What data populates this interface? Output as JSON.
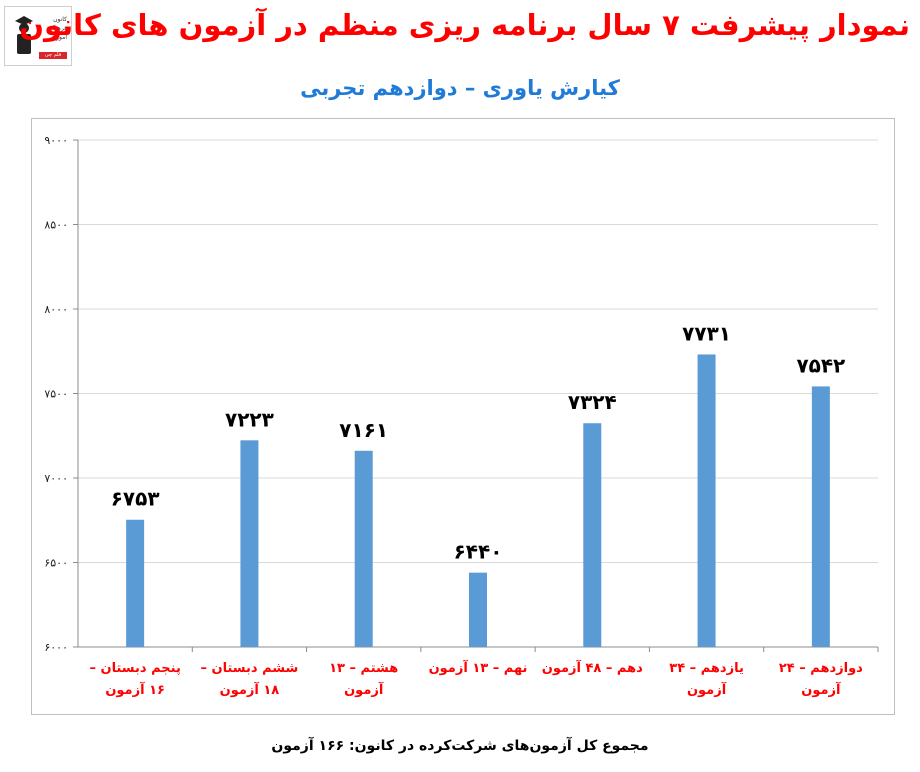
{
  "header": {
    "title": "نمودار پیشرفت ۷ سال برنامه ریزی منظم در آزمون های کانون",
    "subtitle": "کیارش یاوری – دوازدهم تجربی"
  },
  "logo": {
    "text": "کانون فرهنگی آموزش",
    "bar_text": "قلم چی"
  },
  "footer": {
    "text": "مجموع کل آزمون‌های شرکت‌کرده در کانون: ۱۶۶ آزمون"
  },
  "colors": {
    "bar": "#5b9bd5",
    "grid": "#d9d9d9",
    "category": "#ff0000",
    "title": "#ff0000",
    "subtitle": "#1f7ad8"
  },
  "chart_data": {
    "type": "bar",
    "title": "نمودار پیشرفت ۷ سال برنامه ریزی منظم در آزمون های کانون",
    "subtitle": "کیارش یاوری – دوازدهم تجربی",
    "categories": [
      "پنجم دبستان – ۱۶ آزمون",
      "ششم دبستان – ۱۸ آزمون",
      "هشتم – ۱۳ آزمون",
      "نهم – ۱۳ آزمون",
      "دهم – ۴۸ آزمون",
      "یازدهم – ۳۴ آزمون",
      "دوازدهم – ۲۴ آزمون"
    ],
    "values": [
      6753,
      7223,
      7161,
      6440,
      7324,
      7731,
      7542
    ],
    "data_labels": [
      "۶۷۵۳",
      "۷۲۲۳",
      "۷۱۶۱",
      "۶۴۴۰",
      "۷۳۲۴",
      "۷۷۳۱",
      "۷۵۴۲"
    ],
    "ylim": [
      6000,
      9000
    ],
    "yticks": [
      6000,
      6500,
      7000,
      7500,
      8000,
      8500,
      9000
    ],
    "ytick_labels": [
      "۶۰۰۰",
      "۶۵۰۰",
      "۷۰۰۰",
      "۷۵۰۰",
      "۸۰۰۰",
      "۸۵۰۰",
      "۹۰۰۰"
    ],
    "grid": true,
    "xlabel": "",
    "ylabel": ""
  }
}
